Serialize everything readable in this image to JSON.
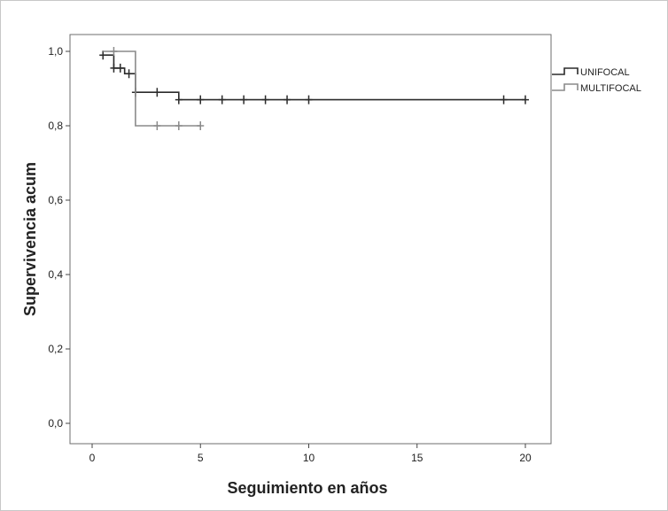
{
  "chart_data": {
    "type": "line",
    "step": true,
    "xlabel": "Seguimiento en años",
    "ylabel": "Supervivencia acum",
    "xlim": [
      -1,
      21
    ],
    "ylim": [
      -0.05,
      1.05
    ],
    "xticks": [
      0,
      5,
      10,
      15,
      20
    ],
    "yticks": [
      0.0,
      0.2,
      0.4,
      0.6,
      0.8,
      1.0
    ],
    "xtick_labels": [
      "0",
      "5",
      "10",
      "15",
      "20"
    ],
    "ytick_labels": [
      "0,0",
      "0,2",
      "0,4",
      "0,6",
      "0,8",
      "1,0"
    ],
    "grid": false,
    "legend_position": "right",
    "series": [
      {
        "name": "UNIFOCAL",
        "color": "#2b2b2b",
        "steps": [
          [
            0.5,
            0.99
          ],
          [
            1.0,
            0.955
          ],
          [
            1.5,
            0.94
          ],
          [
            2.0,
            0.89
          ],
          [
            4.0,
            0.87
          ],
          [
            20.0,
            0.87
          ]
        ],
        "censored": [
          [
            0.5,
            0.99
          ],
          [
            1.0,
            0.955
          ],
          [
            1.3,
            0.955
          ],
          [
            1.7,
            0.94
          ],
          [
            2.0,
            0.89
          ],
          [
            3.0,
            0.89
          ],
          [
            4.0,
            0.87
          ],
          [
            5.0,
            0.87
          ],
          [
            6.0,
            0.87
          ],
          [
            7.0,
            0.87
          ],
          [
            8.0,
            0.87
          ],
          [
            9.0,
            0.87
          ],
          [
            10.0,
            0.87
          ],
          [
            19.0,
            0.87
          ],
          [
            20.0,
            0.87
          ]
        ]
      },
      {
        "name": "MULTIFOCAL",
        "color": "#8a8a8a",
        "steps": [
          [
            0.5,
            1.0
          ],
          [
            2.0,
            0.8
          ],
          [
            5.0,
            0.8
          ]
        ],
        "censored": [
          [
            1.0,
            1.0
          ],
          [
            3.0,
            0.8
          ],
          [
            4.0,
            0.8
          ],
          [
            5.0,
            0.8
          ]
        ]
      }
    ]
  }
}
